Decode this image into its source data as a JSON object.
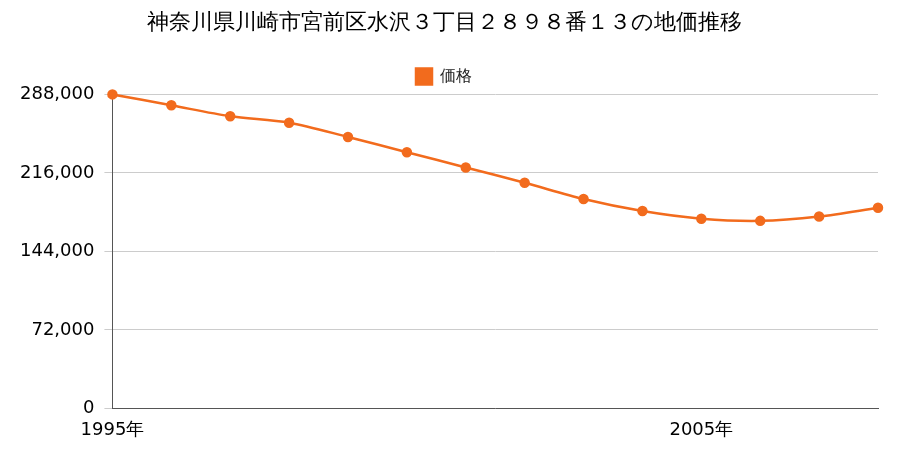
{
  "chart_data": {
    "type": "line",
    "title": "神奈川県川崎市宮前区水沢３丁目２８９８番１３の地価推移",
    "categories": [
      "1995年",
      null,
      null,
      null,
      null,
      null,
      null,
      null,
      null,
      null,
      "2005年",
      null,
      null,
      null
    ],
    "series": [
      {
        "name": "価格",
        "color": "#f26b1d",
        "values": [
          288000,
          278000,
          268000,
          262000,
          249000,
          235000,
          221000,
          207000,
          192000,
          181000,
          174000,
          172000,
          176000,
          184000
        ]
      }
    ],
    "ylim": [
      0,
      288000
    ],
    "yticks": [
      0,
      {
        "value": 72000,
        "label": "72,000"
      },
      {
        "value": 144000,
        "label": "144,000"
      },
      {
        "value": 216000,
        "label": "216,000"
      },
      {
        "value": 288000,
        "label": "288,000"
      }
    ],
    "grid": true,
    "legend": "top",
    "marker": "circle",
    "line_style": "solid"
  }
}
